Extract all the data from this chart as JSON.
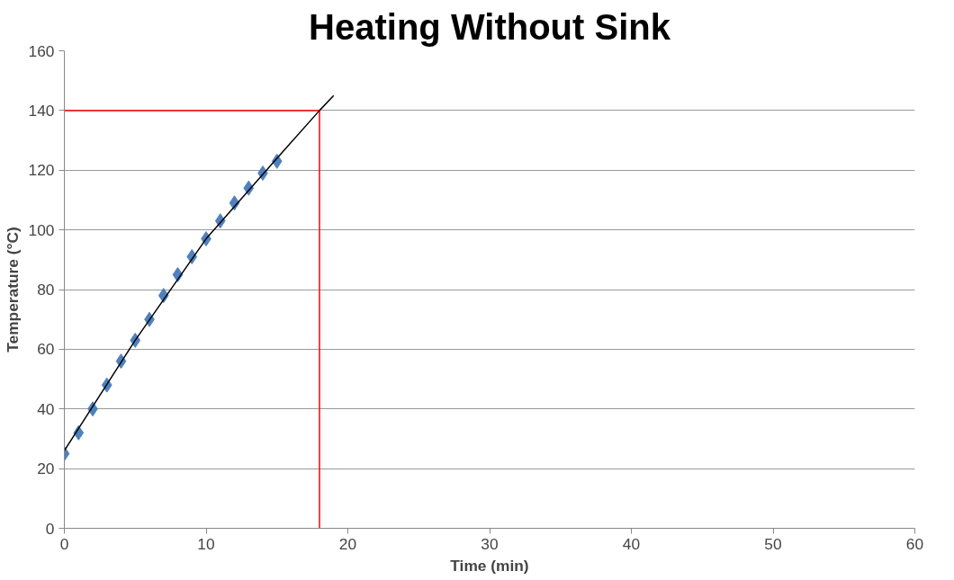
{
  "chart_data": {
    "type": "scatter",
    "title": "Heating Without Sink",
    "xlabel": "Time (min)",
    "ylabel": "Temperature (°C)",
    "xlim": [
      0,
      60
    ],
    "xticks": [
      0,
      10,
      20,
      30,
      40,
      50,
      60
    ],
    "ylim": [
      0,
      160
    ],
    "yticks": [
      0,
      20,
      40,
      60,
      80,
      100,
      120,
      140,
      160
    ],
    "grid": "y",
    "series": [
      {
        "marker": "diamond",
        "color": "#4f81bd",
        "x": [
          0,
          1,
          2,
          3,
          4,
          5,
          6,
          7,
          8,
          9,
          10,
          11,
          12,
          13,
          14,
          15
        ],
        "values": [
          25,
          32,
          40,
          48,
          56,
          63,
          70,
          78,
          85,
          91,
          97,
          103,
          109,
          114,
          119,
          123
        ]
      },
      {
        "type": "line",
        "color": "#000000",
        "x": [
          0,
          5,
          10,
          15,
          18,
          19
        ],
        "values": [
          26,
          63,
          97,
          124,
          140,
          145
        ]
      }
    ],
    "ref_lines": [
      {
        "axis": "y",
        "value": 140,
        "color": "#ff0000"
      },
      {
        "axis": "x",
        "value": 18,
        "color": "#ff0000"
      }
    ]
  }
}
